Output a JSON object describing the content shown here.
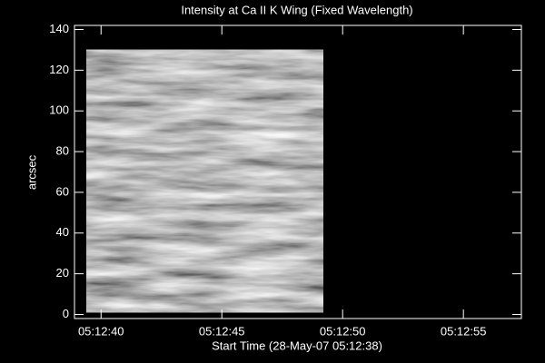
{
  "chart_data": {
    "type": "image",
    "title": "Intensity at Ca II K Wing (Fixed Wavelength)",
    "x_label": "Start Time (28-May-07 05:12:38)",
    "y_label": "arcsec",
    "xlim": [
      0.9,
      19.4
    ],
    "ylim": [
      -2,
      142
    ],
    "xticks": [
      {
        "value": 2,
        "label": "05:12:40"
      },
      {
        "value": 7,
        "label": "05:12:45"
      },
      {
        "value": 12,
        "label": "05:12:50"
      },
      {
        "value": 17,
        "label": "05:12:55"
      }
    ],
    "yticks": [
      0,
      20,
      40,
      60,
      80,
      100,
      120,
      140
    ],
    "image": {
      "x": [
        1.4,
        11.2
      ],
      "y": [
        1,
        130
      ]
    }
  }
}
